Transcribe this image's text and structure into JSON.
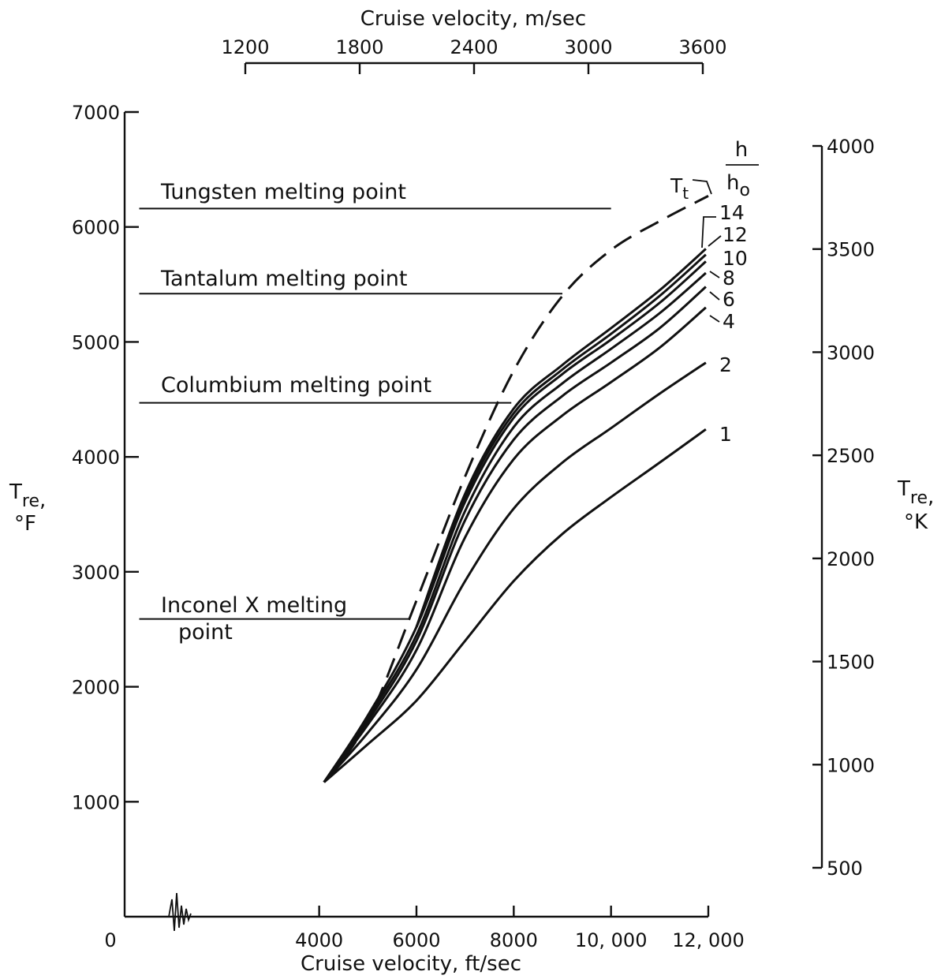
{
  "chart_data": {
    "type": "line",
    "x_axis": {
      "label": "Cruise velocity, ft/sec",
      "range": [
        0,
        12000
      ],
      "ticks": [
        0,
        4000,
        6000,
        8000,
        10000,
        12000
      ],
      "tick_labels": [
        "0",
        "4000",
        "6000",
        "8000",
        "10, 000",
        "12, 000"
      ]
    },
    "x2_axis": {
      "label": "Cruise velocity, m/sec",
      "range": [
        1200,
        3600
      ],
      "ticks": [
        1200,
        1800,
        2400,
        3000,
        3600
      ],
      "tick_labels": [
        "1200",
        "1800",
        "2400",
        "3000",
        "3600"
      ]
    },
    "y_axis": {
      "label_main": "T",
      "label_sub": "re",
      "label_suffix": ",",
      "unit": "°F",
      "range": [
        0,
        7000
      ],
      "ticks": [
        1000,
        2000,
        3000,
        4000,
        5000,
        6000,
        7000
      ],
      "tick_labels": [
        "1000",
        "2000",
        "3000",
        "4000",
        "5000",
        "6000",
        "7000"
      ]
    },
    "y2_axis": {
      "label_main": "T",
      "label_sub": "re",
      "label_suffix": ",",
      "unit": "°K",
      "range": [
        500,
        4000
      ],
      "ticks": [
        500,
        1000,
        1500,
        2000,
        2500,
        3000,
        3500,
        4000
      ],
      "tick_labels": [
        "500",
        "1000",
        "1500",
        "2000",
        "2500",
        "3000",
        "3500",
        "4000"
      ]
    },
    "legend_header": {
      "top": "h",
      "bottom_main": "h",
      "bottom_sub": "o"
    },
    "reference_lines": [
      {
        "label": "Tungsten melting point",
        "y": 6160,
        "x_start": 300,
        "x_end": 10000
      },
      {
        "label": "Tantalum melting point",
        "y": 5420,
        "x_start": 300,
        "x_end": 9000
      },
      {
        "label": "Columbium melting point",
        "y": 4470,
        "x_start": 300,
        "x_end": 7950
      },
      {
        "label_line1": "Inconel X melting",
        "label_line2": "point",
        "y": 2590,
        "x_start": 300,
        "x_end": 5850
      }
    ],
    "series": [
      {
        "name": "T",
        "name_sub": "t",
        "style": "dashed",
        "x": [
          4100,
          5000,
          6000,
          7000,
          8000,
          9000,
          10000,
          11000,
          12000
        ],
        "y": [
          1170,
          1700,
          2750,
          3830,
          4750,
          5400,
          5800,
          6050,
          6270
        ]
      },
      {
        "name": "14",
        "style": "solid",
        "x": [
          6000,
          7000,
          8000,
          9000,
          10000,
          11000,
          11950
        ],
        "y": [
          2520,
          3680,
          4420,
          4800,
          5120,
          5450,
          5810
        ]
      },
      {
        "name": "12",
        "style": "solid",
        "x": [
          6000,
          7000,
          8000,
          9000,
          10000,
          11000,
          11950
        ],
        "y": [
          2520,
          3650,
          4380,
          4760,
          5070,
          5400,
          5760
        ]
      },
      {
        "name": "10",
        "style": "solid",
        "x": [
          4100,
          5000,
          6000,
          7000,
          8000,
          9000,
          10000,
          11000,
          11950
        ],
        "y": [
          1170,
          1750,
          2520,
          3610,
          4340,
          4720,
          5020,
          5340,
          5700
        ]
      },
      {
        "name": "8",
        "style": "solid",
        "x": [
          4100,
          5000,
          6000,
          7000,
          8000,
          9000,
          10000,
          11000,
          11950
        ],
        "y": [
          1170,
          1730,
          2450,
          3530,
          4260,
          4640,
          4940,
          5250,
          5600
        ]
      },
      {
        "name": "6",
        "style": "solid",
        "x": [
          4100,
          5000,
          6000,
          7000,
          8000,
          9000,
          10000,
          11000,
          11950
        ],
        "y": [
          1170,
          1700,
          2400,
          3450,
          4150,
          4530,
          4820,
          5120,
          5480
        ]
      },
      {
        "name": "4",
        "style": "solid",
        "x": [
          4100,
          5000,
          6000,
          7000,
          8000,
          9000,
          10000,
          11000,
          11950
        ],
        "y": [
          1170,
          1670,
          2320,
          3300,
          3980,
          4360,
          4650,
          4950,
          5300
        ]
      },
      {
        "name": "2",
        "style": "solid",
        "x": [
          4100,
          5000,
          6000,
          7000,
          8000,
          9000,
          10000,
          11000,
          11950
        ],
        "y": [
          1170,
          1600,
          2150,
          2920,
          3550,
          3950,
          4250,
          4550,
          4820
        ]
      },
      {
        "name": "1",
        "style": "solid",
        "x": [
          4100,
          5000,
          6000,
          7000,
          8000,
          9000,
          10000,
          11000,
          11950
        ],
        "y": [
          1170,
          1500,
          1880,
          2400,
          2920,
          3330,
          3650,
          3950,
          4240
        ]
      }
    ]
  }
}
